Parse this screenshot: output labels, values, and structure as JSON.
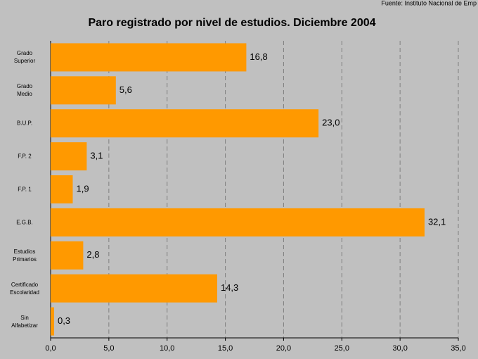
{
  "chart_data": {
    "type": "barh",
    "title": "Paro registrado por nivel de estudios. Diciembre 2004",
    "source": "Fuente: Instituto Nacional de Emp",
    "categories": [
      "Grado\nSuperior",
      "Grado\nMedio",
      "B.U.P.",
      "F.P. 2",
      "F.P. 1",
      "E.G.B.",
      "Estudios\nPrimarios",
      "Certificado\nEscolaridad",
      "Sin\nAlfabetizar"
    ],
    "values": [
      16.8,
      5.6,
      23.0,
      3.1,
      1.9,
      32.1,
      2.8,
      14.3,
      0.3
    ],
    "value_labels": [
      "16,8",
      "5,6",
      "23,0",
      "3,1",
      "1,9",
      "32,1",
      "2,8",
      "14,3",
      "0,3"
    ],
    "color": "#ff9900",
    "xlim": [
      0,
      35
    ],
    "xticks": [
      {
        "value": 0,
        "label": "0,0"
      },
      {
        "value": 5,
        "label": "5,0"
      },
      {
        "value": 10,
        "label": "10,0"
      },
      {
        "value": 15,
        "label": "15,0"
      },
      {
        "value": 20,
        "label": "20,0"
      },
      {
        "value": 25,
        "label": "25,0"
      },
      {
        "value": 30,
        "label": "30,0"
      },
      {
        "value": 35,
        "label": "35,0"
      }
    ],
    "grid": true
  }
}
